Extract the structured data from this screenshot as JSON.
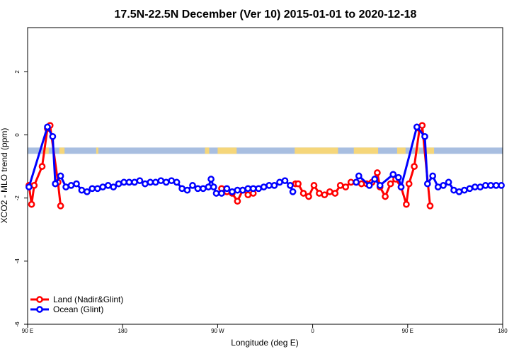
{
  "chart_data": {
    "type": "line",
    "title": "17.5N-22.5N December (Ver 10)   2015-01-01 to 2020-12-18",
    "xlabel": "Longitude (deg E)",
    "ylabel": "XCO2 - MLO trend (ppm)",
    "xlim": [
      90,
      540
    ],
    "ylim": [
      -6,
      3.4
    ],
    "x_ticks": [
      {
        "value": 90,
        "label": "90 E"
      },
      {
        "value": 180,
        "label": "180"
      },
      {
        "value": 270,
        "label": "90 W"
      },
      {
        "value": 360,
        "label": "0"
      },
      {
        "value": 450,
        "label": "90 E"
      },
      {
        "value": 540,
        "label": "180"
      }
    ],
    "y_ticks": [
      {
        "value": 2,
        "label": "2"
      },
      {
        "value": 0,
        "label": "0"
      },
      {
        "value": -2,
        "label": "-2"
      },
      {
        "value": -4,
        "label": "-4"
      },
      {
        "value": -6,
        "label": "-6"
      }
    ],
    "surface_band": {
      "y_top": -0.4,
      "y_bottom": -0.6,
      "ocean_color": "#a8bee0",
      "land_color": "#f5d67a",
      "land_segments": [
        [
          105,
          110
        ],
        [
          120,
          125
        ],
        [
          155,
          157
        ],
        [
          258,
          262
        ],
        [
          270,
          288
        ],
        [
          343,
          384
        ],
        [
          399,
          422
        ],
        [
          440,
          448
        ],
        [
          457,
          461
        ],
        [
          467,
          475
        ]
      ]
    },
    "legend": {
      "position": "bottom-left",
      "entries": [
        {
          "label": "Land (Nadir&Glint)",
          "color": "#ff0000"
        },
        {
          "label": "Ocean (Glint)",
          "color": "#0000ff"
        }
      ]
    },
    "series": [
      {
        "name": "Land (Nadir&Glint)",
        "color": "#ff0000",
        "segments": [
          [
            [
              91.25,
              -1.6
            ],
            [
              93.75,
              -2.2
            ],
            [
              96.25,
              -1.6
            ],
            [
              103.75,
              -1.0
            ],
            [
              108.75,
              0.2
            ],
            [
              111.25,
              0.3
            ],
            [
              118.75,
              -1.5
            ],
            [
              121.25,
              -2.25
            ]
          ],
          [
            [
              273.75,
              -1.7
            ],
            [
              278.75,
              -1.8
            ],
            [
              283.75,
              -1.85
            ],
            [
              288.75,
              -2.1
            ],
            [
              293.75,
              -1.75
            ],
            [
              298.75,
              -1.9
            ],
            [
              303.75,
              -1.85
            ]
          ],
          [
            [
              343.75,
              -1.55
            ],
            [
              346.25,
              -1.55
            ],
            [
              351.25,
              -1.85
            ],
            [
              356.25,
              -1.95
            ],
            [
              361.25,
              -1.6
            ],
            [
              366.25,
              -1.85
            ],
            [
              371.25,
              -1.9
            ],
            [
              376.25,
              -1.8
            ],
            [
              381.25,
              -1.85
            ],
            [
              386.25,
              -1.6
            ],
            [
              391.25,
              -1.65
            ],
            [
              396.25,
              -1.5
            ],
            [
              401.25,
              -1.5
            ],
            [
              406.25,
              -1.55
            ],
            [
              411.25,
              -1.55
            ],
            [
              416.25,
              -1.5
            ],
            [
              421.25,
              -1.2
            ],
            [
              423.75,
              -1.65
            ],
            [
              428.75,
              -1.95
            ],
            [
              433.75,
              -1.55
            ],
            [
              438.75,
              -1.4
            ],
            [
              443.75,
              -1.65
            ],
            [
              448.75,
              -2.2
            ],
            [
              451.25,
              -1.55
            ],
            [
              456.25,
              -1.0
            ],
            [
              461.25,
              0.2
            ],
            [
              463.75,
              0.3
            ],
            [
              471.25,
              -2.25
            ]
          ]
        ]
      },
      {
        "name": "Ocean (Glint)",
        "color": "#0000ff",
        "segments": [
          [
            [
              91.25,
              -1.65
            ],
            [
              108.75,
              0.25
            ],
            [
              113.75,
              -0.05
            ],
            [
              116.25,
              -1.55
            ],
            [
              121.25,
              -1.3
            ],
            [
              126.25,
              -1.65
            ],
            [
              131.25,
              -1.6
            ],
            [
              136.25,
              -1.55
            ],
            [
              141.25,
              -1.75
            ],
            [
              146.25,
              -1.8
            ],
            [
              151.25,
              -1.7
            ],
            [
              156.25,
              -1.7
            ],
            [
              161.25,
              -1.65
            ],
            [
              166.25,
              -1.6
            ],
            [
              171.25,
              -1.65
            ],
            [
              176.25,
              -1.55
            ],
            [
              181.25,
              -1.5
            ],
            [
              186.25,
              -1.5
            ],
            [
              191.25,
              -1.5
            ],
            [
              196.25,
              -1.45
            ],
            [
              201.25,
              -1.55
            ],
            [
              206.25,
              -1.5
            ],
            [
              211.25,
              -1.5
            ],
            [
              216.25,
              -1.45
            ],
            [
              221.25,
              -1.5
            ],
            [
              226.25,
              -1.45
            ],
            [
              231.25,
              -1.5
            ],
            [
              236.25,
              -1.7
            ],
            [
              241.25,
              -1.75
            ],
            [
              246.25,
              -1.6
            ],
            [
              251.25,
              -1.7
            ],
            [
              256.25,
              -1.7
            ],
            [
              261.25,
              -1.65
            ],
            [
              263.75,
              -1.4
            ],
            [
              266.25,
              -1.65
            ],
            [
              268.75,
              -1.85
            ],
            [
              273.75,
              -1.85
            ],
            [
              278.75,
              -1.7
            ],
            [
              283.75,
              -1.8
            ],
            [
              288.75,
              -1.75
            ],
            [
              293.75,
              -1.75
            ],
            [
              298.75,
              -1.7
            ],
            [
              303.75,
              -1.7
            ],
            [
              308.75,
              -1.7
            ],
            [
              313.75,
              -1.65
            ],
            [
              318.75,
              -1.6
            ],
            [
              323.75,
              -1.6
            ],
            [
              328.75,
              -1.5
            ],
            [
              333.75,
              -1.45
            ],
            [
              338.75,
              -1.6
            ],
            [
              341.25,
              -1.8
            ]
          ],
          [
            [
              401.25,
              -1.5
            ],
            [
              403.75,
              -1.3
            ],
            [
              413.75,
              -1.6
            ],
            [
              418.75,
              -1.4
            ],
            [
              423.75,
              -1.6
            ],
            [
              436.25,
              -1.25
            ],
            [
              441.25,
              -1.35
            ],
            [
              443.75,
              -1.65
            ],
            [
              458.75,
              0.25
            ],
            [
              466.25,
              -0.05
            ],
            [
              468.75,
              -1.55
            ],
            [
              473.75,
              -1.3
            ],
            [
              478.75,
              -1.65
            ],
            [
              483.75,
              -1.6
            ],
            [
              488.75,
              -1.5
            ],
            [
              493.75,
              -1.75
            ],
            [
              498.75,
              -1.8
            ],
            [
              503.75,
              -1.75
            ],
            [
              508.75,
              -1.7
            ],
            [
              513.75,
              -1.65
            ],
            [
              518.75,
              -1.65
            ],
            [
              523.75,
              -1.6
            ],
            [
              528.75,
              -1.6
            ],
            [
              533.75,
              -1.6
            ],
            [
              538.75,
              -1.6
            ]
          ]
        ]
      }
    ]
  }
}
